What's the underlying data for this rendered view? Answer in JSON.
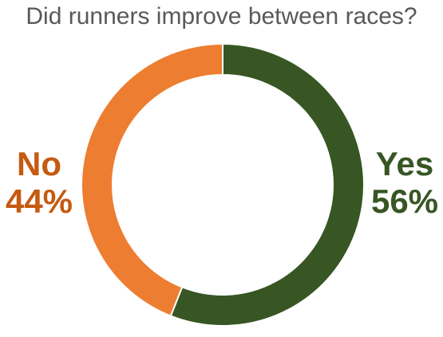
{
  "colors": {
    "yes": "#375623",
    "no": "#ED7D31",
    "no_label": "#C55A11",
    "title": "#595959"
  },
  "chart_data": {
    "type": "pie",
    "style": "donut",
    "title": "Did runners improve between races?",
    "legend": "none",
    "slices": [
      {
        "label": "Yes",
        "value": 56,
        "value_label": "56%"
      },
      {
        "label": "No",
        "value": 44,
        "value_label": "44%"
      }
    ]
  }
}
